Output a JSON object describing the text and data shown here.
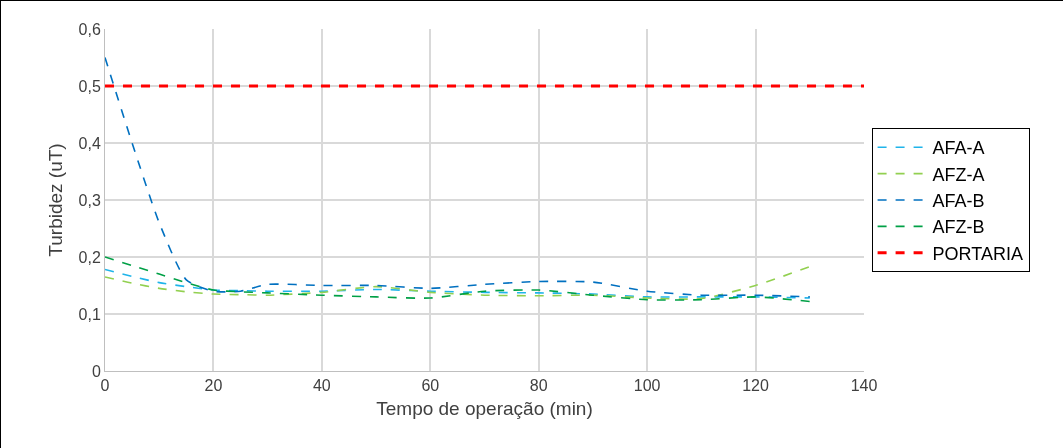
{
  "chart_data": {
    "type": "line",
    "xlabel": "Tempo de operação (min)",
    "ylabel": "Turbidez (uT)",
    "x": [
      0,
      5,
      10,
      15,
      20,
      25,
      30,
      40,
      50,
      60,
      70,
      80,
      90,
      100,
      110,
      120,
      130
    ],
    "series": [
      {
        "name": "AFA-A",
        "color": "#1fb4ea",
        "values": [
          0.178,
          0.166,
          0.155,
          0.148,
          0.142,
          0.141,
          0.14,
          0.14,
          0.143,
          0.14,
          0.138,
          0.137,
          0.135,
          0.13,
          0.13,
          0.13,
          0.128
        ]
      },
      {
        "name": "AFZ-A",
        "color": "#92d050",
        "values": [
          0.165,
          0.154,
          0.145,
          0.139,
          0.135,
          0.134,
          0.133,
          0.138,
          0.148,
          0.138,
          0.133,
          0.132,
          0.133,
          0.128,
          0.127,
          0.15,
          0.183
        ]
      },
      {
        "name": "AFA-B",
        "color": "#0070c0",
        "values": [
          0.55,
          0.4,
          0.26,
          0.16,
          0.14,
          0.14,
          0.152,
          0.15,
          0.15,
          0.145,
          0.152,
          0.157,
          0.156,
          0.14,
          0.133,
          0.133,
          0.13
        ]
      },
      {
        "name": "AFZ-B",
        "color": "#00a046",
        "values": [
          0.2,
          0.185,
          0.17,
          0.155,
          0.142,
          0.139,
          0.137,
          0.133,
          0.13,
          0.128,
          0.14,
          0.142,
          0.133,
          0.125,
          0.125,
          0.13,
          0.122
        ]
      }
    ],
    "ref_lines": [
      {
        "axis": "y",
        "value": 0.5,
        "label": "PORTARIA",
        "color": "#ff0000",
        "line_style": "dashed"
      }
    ],
    "xlim": [
      0,
      140
    ],
    "xticks": [
      0,
      20,
      40,
      60,
      80,
      100,
      120,
      140
    ],
    "ylim": [
      0,
      0.6
    ],
    "yticks": [
      {
        "value": 0,
        "label": "0"
      },
      {
        "value": 0.1,
        "label": "0,1"
      },
      {
        "value": 0.2,
        "label": "0,2"
      },
      {
        "value": 0.3,
        "label": "0,3"
      },
      {
        "value": 0.4,
        "label": "0,4"
      },
      {
        "value": 0.5,
        "label": "0,5"
      },
      {
        "value": 0.6,
        "label": "0,6"
      }
    ],
    "grid": true,
    "legend": "right",
    "line_style": "dashed",
    "marker": "none"
  }
}
